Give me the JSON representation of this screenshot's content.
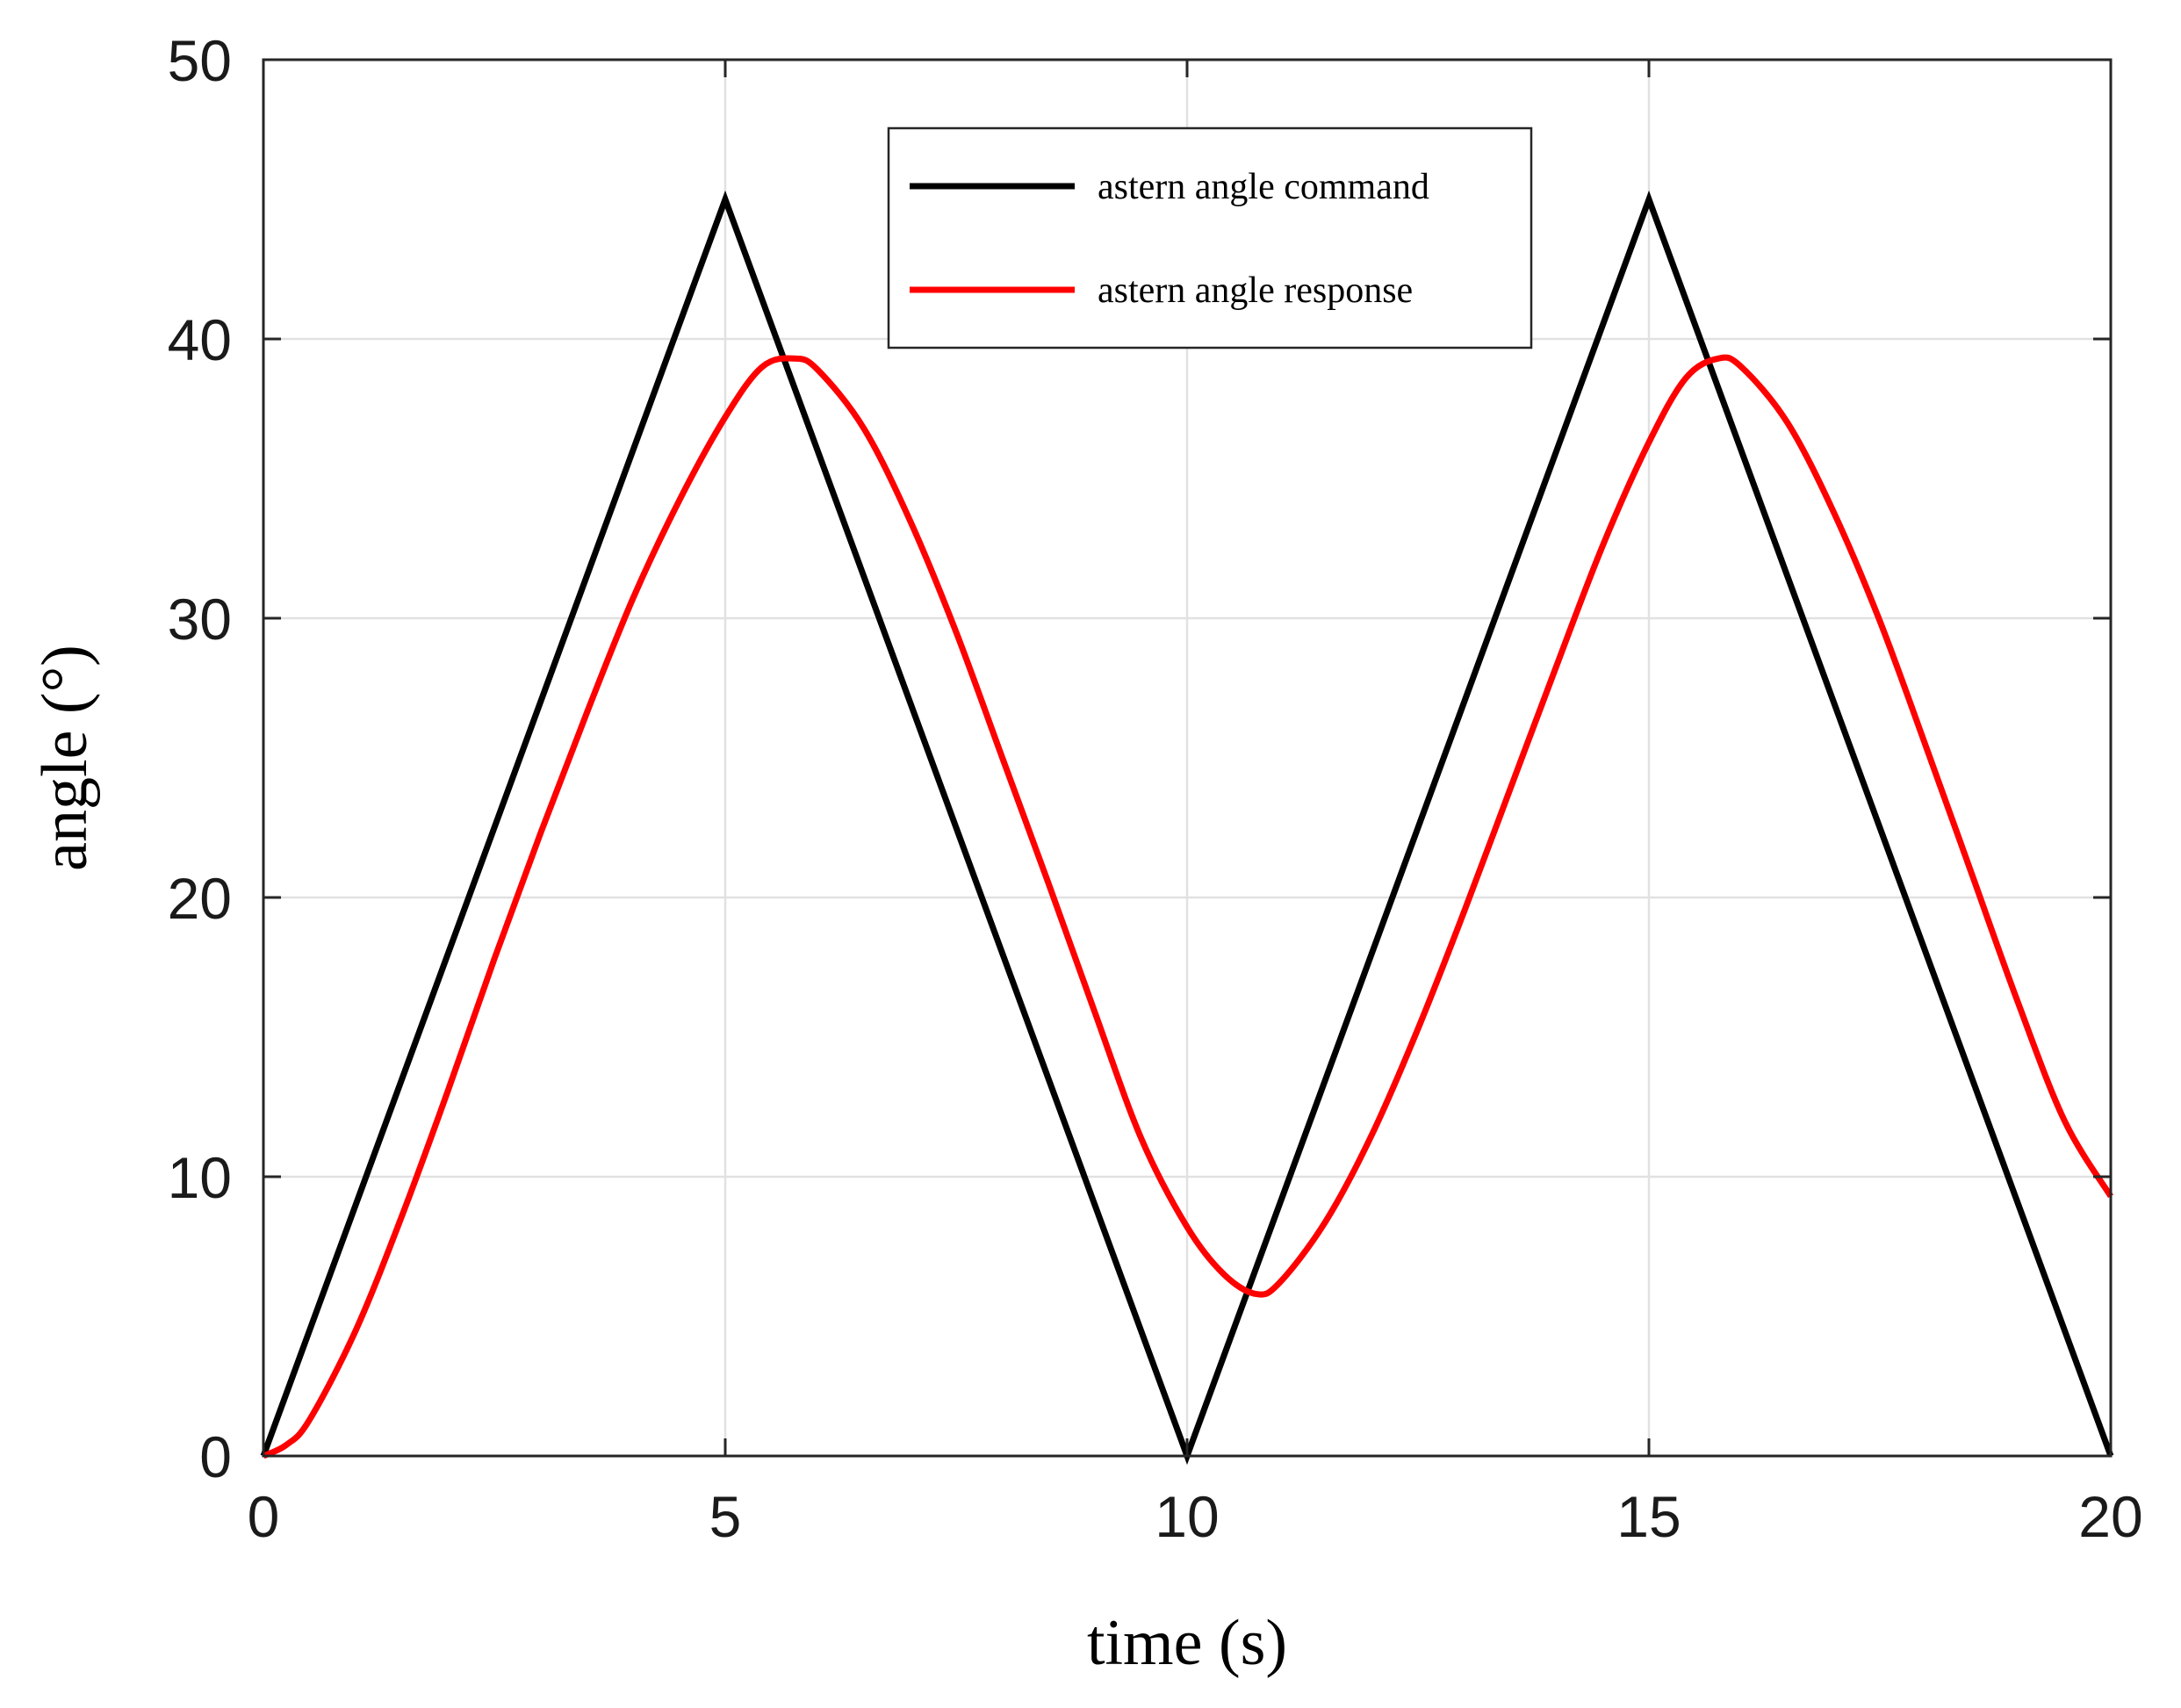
{
  "chart_data": {
    "type": "line",
    "title": "",
    "xlabel": "time (s)",
    "ylabel": "angle (°)",
    "xlim": [
      0,
      20
    ],
    "ylim": [
      0,
      50
    ],
    "xticks": [
      0,
      5,
      10,
      15,
      20
    ],
    "yticks": [
      0,
      10,
      20,
      30,
      40,
      50
    ],
    "grid": true,
    "legend_position": "top-center",
    "series": [
      {
        "name": "astern angle command",
        "color": "#000000",
        "x": [
          0,
          5,
          10,
          15,
          20
        ],
        "y": [
          0,
          45,
          0,
          45,
          0
        ]
      },
      {
        "name": "astern angle response",
        "color": "#ff0000",
        "x": [
          0,
          0.25,
          0.5,
          1,
          1.5,
          2,
          2.5,
          3,
          3.5,
          4,
          4.5,
          5,
          5.4,
          5.75,
          6,
          6.5,
          7,
          7.5,
          8,
          8.5,
          9,
          9.5,
          10,
          10.4,
          10.75,
          11,
          11.5,
          12,
          12.5,
          13,
          13.5,
          14,
          14.5,
          15,
          15.4,
          15.75,
          16,
          16.5,
          17,
          17.5,
          18,
          18.5,
          19,
          19.5,
          20
        ],
        "y": [
          0,
          0.4,
          1.3,
          4.5,
          8.6,
          13.1,
          17.8,
          22.3,
          26.6,
          30.7,
          34.2,
          37.2,
          39.0,
          39.3,
          38.9,
          36.8,
          33.5,
          29.5,
          25.0,
          20.5,
          15.9,
          11.4,
          8.2,
          6.5,
          5.8,
          6.2,
          8.4,
          11.5,
          15.3,
          19.5,
          23.9,
          28.3,
          32.6,
          36.3,
          38.6,
          39.3,
          39.0,
          37.0,
          33.8,
          29.9,
          25.4,
          20.8,
          16.2,
          12.0,
          9.3
        ]
      }
    ]
  }
}
